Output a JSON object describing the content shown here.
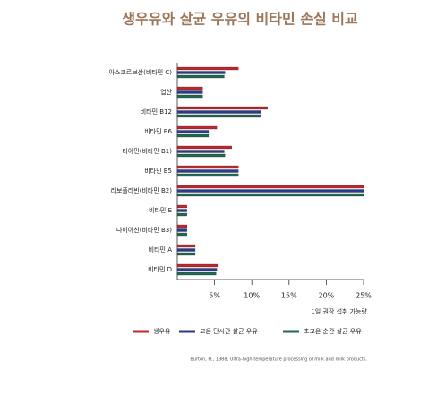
{
  "chart_data": {
    "type": "hbar",
    "title": "생우유와 살균 우유의 비타민 손실 비교",
    "categories": [
      "아스코르브산(비타민 C)",
      "엽산",
      "비타민 B12",
      "비타민 B6",
      "티아민(비타민 B1)",
      "비타민 B5",
      "리보플라빈(비타민 B2)",
      "비타민 E",
      "나이아신(비타민 B3)",
      "비타민 A",
      "비타민 D"
    ],
    "series": [
      {
        "name": "생우유",
        "color": "#c0282e",
        "values": [
          8.2,
          3.4,
          12.1,
          5.3,
          7.3,
          8.2,
          25,
          1.3,
          1.3,
          2.4,
          5.4
        ]
      },
      {
        "name": "고온 단시간 살균 우유",
        "color": "#2b3a8c",
        "values": [
          6.4,
          3.4,
          11.2,
          4.2,
          6.3,
          8.2,
          25,
          1.3,
          1.3,
          2.4,
          5.3
        ]
      },
      {
        "name": "초고온 순간 살균 우유",
        "color": "#1f6b4e",
        "values": [
          6.3,
          3.4,
          11.2,
          4.2,
          6.4,
          8.2,
          25,
          1.3,
          1.3,
          2.4,
          5.2
        ]
      }
    ],
    "xlim": [
      0,
      25
    ],
    "xticks": [
      {
        "value": 5,
        "label": "5%"
      },
      {
        "value": 10,
        "label": "10%"
      },
      {
        "value": 15,
        "label": "15%"
      },
      {
        "value": 20,
        "label": "20%"
      },
      {
        "value": 25,
        "label": "25%"
      }
    ],
    "x_label": "1일 권장 섭취 가능량",
    "source": "Burton, H., 1988, Ultra-high-temperature processing of milk and milk products."
  }
}
